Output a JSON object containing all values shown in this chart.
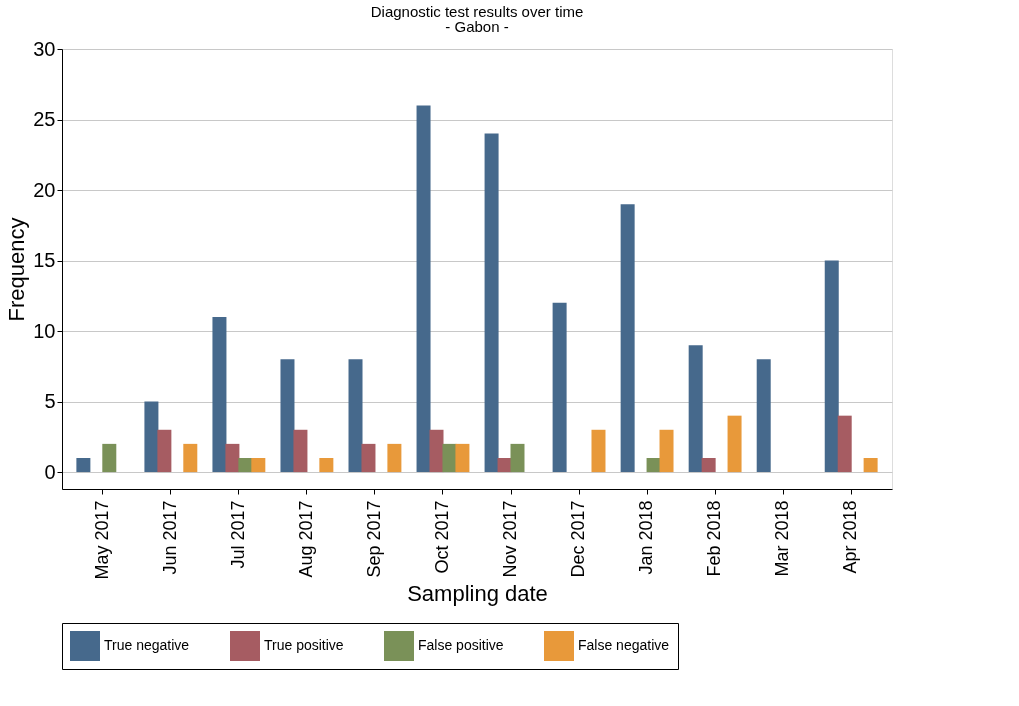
{
  "chart_data": {
    "type": "bar",
    "title": "Diagnostic test results over time",
    "subtitle": "- Gabon -",
    "xlabel": "Sampling date",
    "ylabel": "Frequency",
    "categories": [
      "May 2017",
      "Jun 2017",
      "Jul 2017",
      "Aug 2017",
      "Sep 2017",
      "Oct 2017",
      "Nov 2017",
      "Dec 2017",
      "Jan 2018",
      "Feb 2018",
      "Mar 2018",
      "Apr 2018"
    ],
    "series": [
      {
        "name": "True negative",
        "color": "#46698c",
        "values": [
          1,
          5,
          11,
          8,
          8,
          26,
          24,
          12,
          19,
          9,
          8,
          15
        ]
      },
      {
        "name": "True positive",
        "color": "#a65c62",
        "values": [
          0,
          3,
          2,
          3,
          2,
          3,
          1,
          0,
          0,
          1,
          0,
          4
        ]
      },
      {
        "name": "False positive",
        "color": "#7a9158",
        "values": [
          2,
          0,
          1,
          0,
          0,
          2,
          2,
          0,
          1,
          0,
          0,
          0
        ]
      },
      {
        "name": "False negative",
        "color": "#e8993a",
        "values": [
          0,
          2,
          1,
          1,
          2,
          2,
          0,
          3,
          3,
          4,
          0,
          1
        ]
      }
    ],
    "ylim": [
      -1.2,
      30
    ],
    "yticks": [
      0,
      5,
      10,
      15,
      20,
      25,
      30
    ],
    "grid": "y",
    "legend": "bottom"
  }
}
